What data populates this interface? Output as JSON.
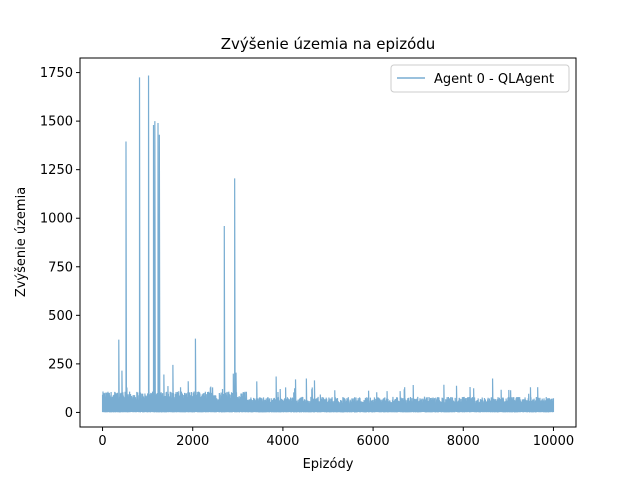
{
  "chart_data": {
    "type": "line",
    "title": "Zvýšenie územia na epizódu",
    "xlabel": "Epizódy",
    "ylabel": "Zvýšenie územia",
    "xlim": [
      -500,
      10500
    ],
    "ylim": [
      -75,
      1825
    ],
    "xticks": [
      0,
      2000,
      4000,
      6000,
      8000,
      10000
    ],
    "yticks": [
      0,
      250,
      500,
      750,
      1000,
      1250,
      1500,
      1750
    ],
    "grid": false,
    "legend_position": "top-right",
    "color": "#1f77b4",
    "alpha": 0.6,
    "series": [
      {
        "name": "Agent 0 - QLAgent",
        "n_episodes": 10000,
        "baseline_band": [
          0,
          80
        ],
        "spikes": [
          {
            "x": 360,
            "y": 375
          },
          {
            "x": 430,
            "y": 215
          },
          {
            "x": 520,
            "y": 1395
          },
          {
            "x": 820,
            "y": 1725
          },
          {
            "x": 1020,
            "y": 1735
          },
          {
            "x": 1130,
            "y": 1480
          },
          {
            "x": 1160,
            "y": 1500
          },
          {
            "x": 1230,
            "y": 1490
          },
          {
            "x": 1260,
            "y": 1430
          },
          {
            "x": 1360,
            "y": 195
          },
          {
            "x": 1560,
            "y": 245
          },
          {
            "x": 2060,
            "y": 380
          },
          {
            "x": 2700,
            "y": 960
          },
          {
            "x": 2900,
            "y": 200
          },
          {
            "x": 2930,
            "y": 1205
          },
          {
            "x": 2960,
            "y": 205
          },
          {
            "x": 3420,
            "y": 160
          },
          {
            "x": 3850,
            "y": 185
          },
          {
            "x": 4280,
            "y": 170
          },
          {
            "x": 4520,
            "y": 175
          },
          {
            "x": 4700,
            "y": 165
          },
          {
            "x": 6700,
            "y": 130
          },
          {
            "x": 8650,
            "y": 175
          },
          {
            "x": 9650,
            "y": 130
          }
        ]
      }
    ]
  }
}
